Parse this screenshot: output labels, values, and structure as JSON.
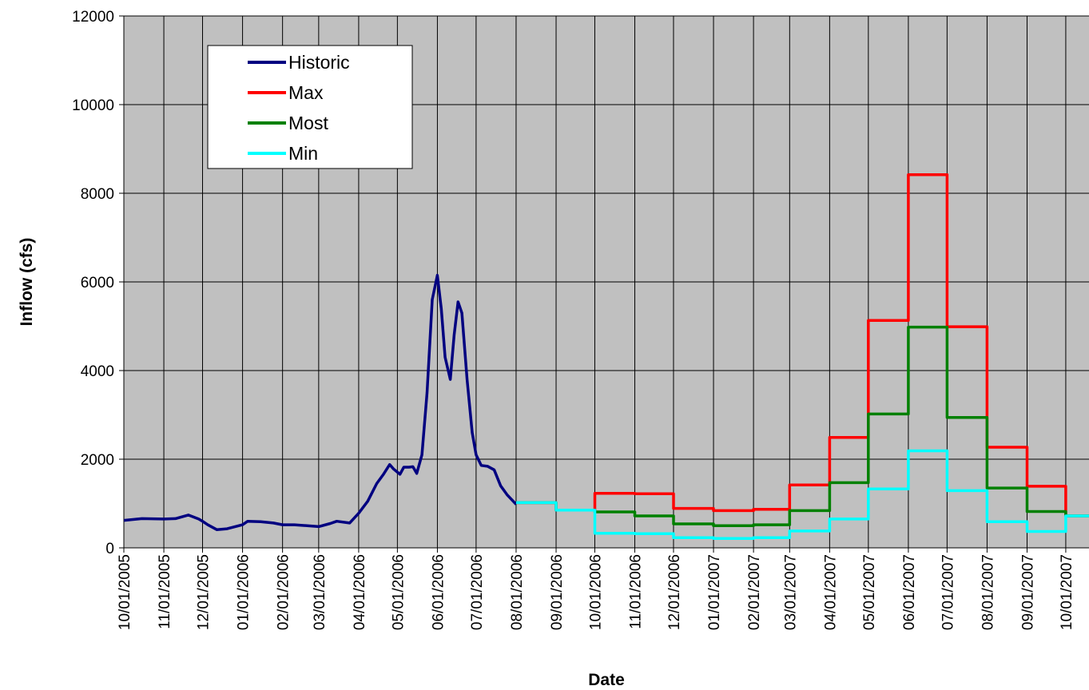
{
  "chart_data": {
    "type": "line",
    "xlabel": "Date",
    "ylabel": "Inflow (cfs)",
    "xlim": [
      "10/01/2005",
      "10/19/2007"
    ],
    "xticks": [
      "10/01/2005",
      "11/01/2005",
      "12/01/2005",
      "01/01/2006",
      "02/01/2006",
      "03/01/2006",
      "04/01/2006",
      "05/01/2006",
      "06/01/2006",
      "07/01/2006",
      "08/01/2006",
      "09/01/2006",
      "10/01/2006",
      "11/01/2006",
      "12/01/2006",
      "01/01/2007",
      "02/01/2007",
      "03/01/2007",
      "04/01/2007",
      "05/01/2007",
      "06/01/2007",
      "07/01/2007",
      "08/01/2007",
      "09/01/2007",
      "10/01/2007"
    ],
    "ylim": [
      0,
      12000
    ],
    "yticks": [
      0,
      2000,
      4000,
      6000,
      8000,
      10000,
      12000
    ],
    "grid": true,
    "legend": "upper left",
    "background": "#c0c0c0",
    "series": [
      {
        "name": "Historic",
        "color": "#000080",
        "x": [
          "10/01/2005",
          "10/15/2005",
          "11/01/2005",
          "11/10/2005",
          "11/20/2005",
          "11/28/2005",
          "12/01/2005",
          "12/05/2005",
          "12/12/2005",
          "12/20/2005",
          "01/01/2006",
          "01/05/2006",
          "01/15/2006",
          "01/25/2006",
          "02/01/2006",
          "02/10/2006",
          "02/20/2006",
          "03/01/2006",
          "03/10/2006",
          "03/15/2006",
          "03/25/2006",
          "04/01/2006",
          "04/08/2006",
          "04/15/2006",
          "04/20/2006",
          "04/25/2006",
          "04/28/2006",
          "05/03/2006",
          "05/06/2006",
          "05/10/2006",
          "05/13/2006",
          "05/16/2006",
          "05/20/2006",
          "05/24/2006",
          "05/28/2006",
          "06/01/2006",
          "06/04/2006",
          "06/07/2006",
          "06/11/2006",
          "06/14/2006",
          "06/17/2006",
          "06/20/2006",
          "06/24/2006",
          "06/28/2006",
          "07/01/2006",
          "07/05/2006",
          "07/10/2006",
          "07/15/2006",
          "07/20/2006",
          "07/25/2006",
          "08/01/2006"
        ],
        "values": [
          620,
          660,
          650,
          660,
          740,
          650,
          600,
          520,
          410,
          430,
          520,
          600,
          590,
          560,
          520,
          520,
          500,
          480,
          550,
          600,
          560,
          780,
          1050,
          1450,
          1650,
          1880,
          1780,
          1660,
          1820,
          1820,
          1830,
          1680,
          2100,
          3500,
          5600,
          6150,
          5400,
          4300,
          3800,
          4800,
          5550,
          5300,
          3800,
          2600,
          2100,
          1860,
          1840,
          1760,
          1400,
          1200,
          980
        ]
      },
      {
        "name": "Max",
        "color": "#ff0000",
        "step": "post",
        "x": [
          "08/01/2006",
          "09/01/2006",
          "10/01/2006",
          "11/01/2006",
          "12/01/2006",
          "01/01/2007",
          "02/01/2007",
          "03/01/2007",
          "04/01/2007",
          "05/01/2007",
          "06/01/2007",
          "07/01/2007",
          "08/01/2007",
          "09/01/2007",
          "10/01/2007"
        ],
        "values": [
          1020,
          850,
          1230,
          1220,
          890,
          840,
          870,
          1420,
          2490,
          5130,
          8420,
          4990,
          2270,
          1390,
          720
        ]
      },
      {
        "name": "Most",
        "color": "#008000",
        "step": "post",
        "x": [
          "08/01/2006",
          "09/01/2006",
          "10/01/2006",
          "11/01/2006",
          "12/01/2006",
          "01/01/2007",
          "02/01/2007",
          "03/01/2007",
          "04/01/2007",
          "05/01/2007",
          "06/01/2007",
          "07/01/2007",
          "08/01/2007",
          "09/01/2007",
          "10/01/2007"
        ],
        "values": [
          1020,
          850,
          810,
          720,
          540,
          500,
          520,
          840,
          1470,
          3020,
          4980,
          2940,
          1350,
          820,
          720
        ]
      },
      {
        "name": "Min",
        "color": "#00ffff",
        "step": "post",
        "x": [
          "08/01/2006",
          "09/01/2006",
          "10/01/2006",
          "11/01/2006",
          "12/01/2006",
          "01/01/2007",
          "02/01/2007",
          "03/01/2007",
          "04/01/2007",
          "05/01/2007",
          "06/01/2007",
          "07/01/2007",
          "08/01/2007",
          "09/01/2007",
          "10/01/2007"
        ],
        "values": [
          1020,
          850,
          330,
          320,
          230,
          210,
          230,
          380,
          650,
          1330,
          2190,
          1290,
          590,
          370,
          720
        ]
      }
    ]
  }
}
